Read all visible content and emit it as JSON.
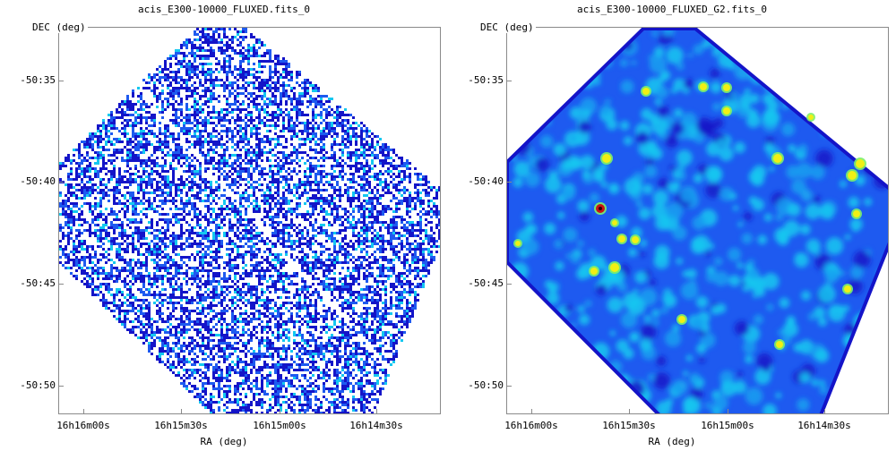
{
  "panels": [
    {
      "title": "acis_E300-10000_FLUXED.fits_0",
      "ylabel": "DEC (deg)",
      "xlabel": "RA (deg)",
      "yticks": [
        "-50:35",
        "-50:40",
        "-50:45",
        "-50:50"
      ],
      "xticks": [
        "16h16m00s",
        "16h15m30s",
        "16h15m00s",
        "16h14m30s"
      ],
      "style": "noisy-counts"
    },
    {
      "title": "acis_E300-10000_FLUXED_G2.fits_0",
      "ylabel": "DEC (deg)",
      "xlabel": "RA (deg)",
      "yticks": [
        "-50:35",
        "-50:40",
        "-50:45",
        "-50:50"
      ],
      "xticks": [
        "16h16m00s",
        "16h15m30s",
        "16h15m00s",
        "16h14m30s"
      ],
      "style": "smoothed-heatmap"
    }
  ],
  "colors": {
    "axis": "#8a8a8a",
    "dark_blue": "#1414c8",
    "mid_blue": "#1e5af0",
    "cyan": "#14c8f0",
    "source_yellow": "#f0f014",
    "source_red": "#c81414"
  }
}
